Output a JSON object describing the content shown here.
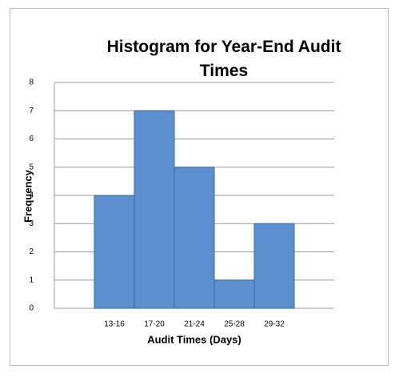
{
  "chart_data": {
    "type": "bar",
    "title": "Histogram for Year-End Audit Times",
    "x_label": "Audit Times (Days)",
    "y_label": "Frequency",
    "categories": [
      "13-16",
      "17-20",
      "21-24",
      "25-28",
      "29-32"
    ],
    "values": [
      4,
      7,
      5,
      1,
      3
    ],
    "color": "#5b8fd0",
    "ylim": [
      0,
      8
    ],
    "yticks": [
      0,
      1,
      2,
      3,
      4,
      5,
      6,
      7,
      8
    ],
    "grid": true
  }
}
